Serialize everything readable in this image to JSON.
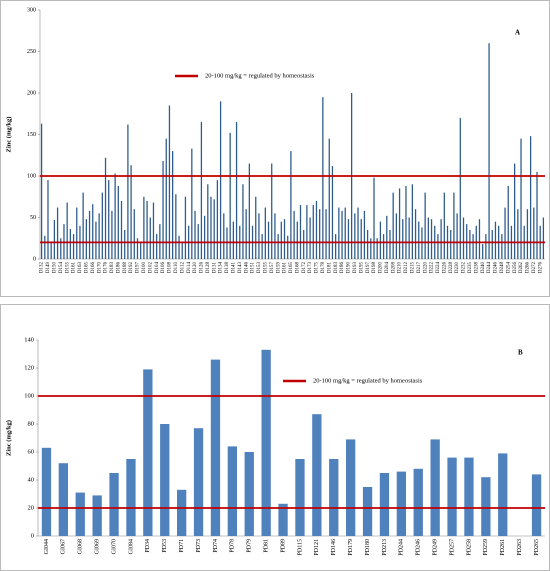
{
  "chart_data": [
    {
      "type": "bar",
      "label": "A",
      "y_label": "Zinc (mg/kg)",
      "color": "#2e5c8a",
      "ylim": [
        0,
        300
      ],
      "yticks": [
        0,
        50,
        100,
        150,
        200,
        250,
        300
      ],
      "reference_lines": {
        "name": "20-100 mg/kg  = regulated  by homeostasis",
        "color": "#c00000",
        "values": [
          20,
          100
        ]
      },
      "categories": [
        "D132",
        null,
        "D149",
        null,
        "D150",
        null,
        "D154",
        null,
        "D155",
        null,
        "D161",
        null,
        "D163",
        null,
        "D165",
        null,
        "D166",
        null,
        "D170",
        null,
        "D176",
        null,
        "D183",
        null,
        "D186",
        null,
        "D188",
        null,
        "D192",
        null,
        "D197",
        null,
        "D100",
        null,
        "D102",
        null,
        "D104",
        null,
        "D106",
        null,
        "D108",
        null,
        "D110",
        null,
        "D112",
        null,
        "D114",
        null,
        "D120",
        null,
        "D126",
        null,
        "D128",
        null,
        "D131",
        null,
        "D134",
        null,
        "D138",
        null,
        "D141",
        null,
        "D143",
        null,
        "D146",
        null,
        "D151",
        null,
        "D153",
        null,
        "D155",
        null,
        "D157",
        null,
        "D159",
        null,
        "D161",
        null,
        "D165",
        null,
        "D168",
        null,
        "D172",
        null,
        "D173",
        null,
        "D175",
        null,
        "D178",
        null,
        "D181",
        null,
        "D183",
        null,
        "D186",
        null,
        "D190",
        null,
        "D193",
        null,
        "D195",
        null,
        "D197",
        null,
        "D198",
        null,
        "D200",
        null,
        "D204",
        null,
        "D208",
        null,
        "D210",
        null,
        "D212",
        null,
        "D215",
        null,
        "D217",
        null,
        "D220",
        null,
        "D222",
        null,
        "D224",
        null,
        "D226",
        null,
        "D228",
        null,
        "D230",
        null,
        "D232",
        null,
        "D235",
        null,
        "D238",
        null,
        "D240",
        null,
        "D244",
        null,
        "D246",
        null,
        "D248",
        null,
        "D254",
        null,
        "D256",
        null,
        "D262",
        null,
        "D266",
        null,
        "D272",
        null,
        "D276",
        null
      ],
      "values": [
        163,
        28,
        95,
        20,
        47,
        62,
        25,
        42,
        68,
        36,
        30,
        62,
        40,
        80,
        48,
        58,
        66,
        45,
        55,
        80,
        122,
        95,
        58,
        103,
        88,
        70,
        35,
        162,
        113,
        60,
        25,
        20,
        75,
        70,
        50,
        68,
        30,
        42,
        118,
        145,
        185,
        130,
        78,
        28,
        20,
        75,
        40,
        133,
        58,
        42,
        165,
        52,
        90,
        75,
        72,
        95,
        190,
        55,
        38,
        152,
        45,
        165,
        40,
        90,
        60,
        115,
        40,
        75,
        55,
        30,
        62,
        45,
        115,
        55,
        30,
        45,
        48,
        28,
        130,
        58,
        45,
        65,
        35,
        65,
        50,
        65,
        70,
        60,
        195,
        60,
        145,
        112,
        30,
        62,
        58,
        62,
        48,
        200,
        55,
        62,
        48,
        58,
        35,
        25,
        98,
        25,
        45,
        30,
        52,
        35,
        80,
        55,
        85,
        48,
        88,
        50,
        90,
        60,
        45,
        38,
        80,
        50,
        48,
        40,
        30,
        48,
        80,
        40,
        35,
        80,
        55,
        170,
        50,
        42,
        35,
        30,
        40,
        48,
        18,
        30,
        260,
        35,
        45,
        40,
        30,
        62,
        88,
        40,
        115,
        60,
        145,
        40,
        60,
        148,
        62,
        105,
        40,
        50
      ]
    },
    {
      "type": "bar",
      "label": "B",
      "y_label": "Zinc (mg/kg)",
      "color": "#4f81bd",
      "ylim": [
        0,
        140
      ],
      "yticks": [
        0,
        20,
        40,
        60,
        80,
        100,
        120,
        140
      ],
      "reference_lines": {
        "name": "20-100 mg/kg = regulated by homeostasis",
        "color": "#c00000",
        "values": [
          20,
          100
        ]
      },
      "categories": [
        "GI044",
        "GI067",
        "GI068",
        "GI069",
        "GI070",
        "GI084",
        "PD34",
        "PD53",
        "PD71",
        "PD73",
        "PD74",
        "PD78",
        "PD79",
        "PD81",
        "PD89",
        "PD115",
        "PD121",
        "PD146",
        "PD179",
        "PD180",
        "PD213",
        "PD244",
        "PD246",
        "PD249",
        "PD257",
        "PD258",
        "PD259",
        "PD261",
        "PD263",
        "PD265"
      ],
      "values": [
        63,
        52,
        31,
        29,
        45,
        55,
        119,
        80,
        33,
        77,
        126,
        64,
        60,
        133,
        23,
        55,
        87,
        55,
        69,
        35,
        45,
        46,
        48,
        69,
        56,
        56,
        42,
        59,
        null,
        44
      ]
    }
  ]
}
